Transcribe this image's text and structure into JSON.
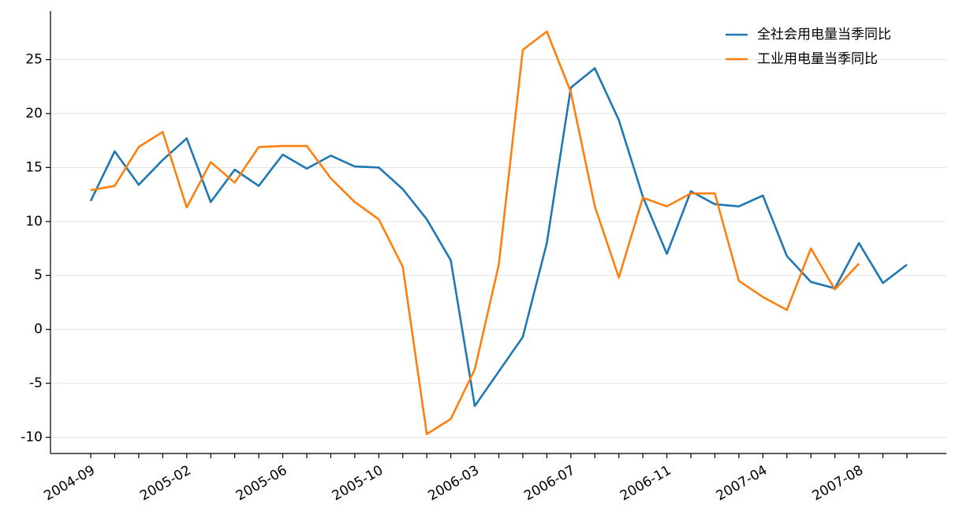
{
  "chart_data": {
    "type": "line",
    "categories": [
      "2004-09",
      null,
      null,
      null,
      "2005-02",
      null,
      null,
      null,
      "2005-06",
      null,
      null,
      null,
      "2005-10",
      null,
      null,
      null,
      "2006-03",
      null,
      null,
      null,
      "2006-07",
      null,
      null,
      null,
      "2006-11",
      null,
      null,
      null,
      "2007-04",
      null,
      null,
      null,
      "2007-08",
      null,
      null
    ],
    "series": [
      {
        "name": "全社会用电量当季同比",
        "color": "#1f77b4",
        "values": [
          11.9,
          16.5,
          13.4,
          15.7,
          17.7,
          11.8,
          14.8,
          13.3,
          16.2,
          14.9,
          16.1,
          15.1,
          15.0,
          13.0,
          10.2,
          6.4,
          -7.1,
          -3.9,
          -0.7,
          8.0,
          22.4,
          24.2,
          19.4,
          12.3,
          7.0,
          12.8,
          11.6,
          11.4,
          12.4,
          6.8,
          4.4,
          3.8,
          8.0,
          4.3,
          6.0
        ]
      },
      {
        "name": "工业用电量当季同比",
        "color": "#ff7f0e",
        "values": [
          12.9,
          13.3,
          16.9,
          18.3,
          11.3,
          15.5,
          13.6,
          16.9,
          17.0,
          17.0,
          14.0,
          11.8,
          10.2,
          5.8,
          -9.7,
          -8.3,
          -3.7,
          6.0,
          25.9,
          27.6,
          22.0,
          11.4,
          4.8,
          12.2,
          11.4,
          12.6,
          12.6,
          4.5,
          3.0,
          1.8,
          7.5,
          3.7,
          6.1,
          null,
          null
        ]
      }
    ],
    "ylim": [
      -11.5,
      29.5
    ],
    "yticks": [
      -10,
      -5,
      0,
      5,
      10,
      15,
      20,
      25
    ],
    "grid": true,
    "legend": "upper right"
  }
}
